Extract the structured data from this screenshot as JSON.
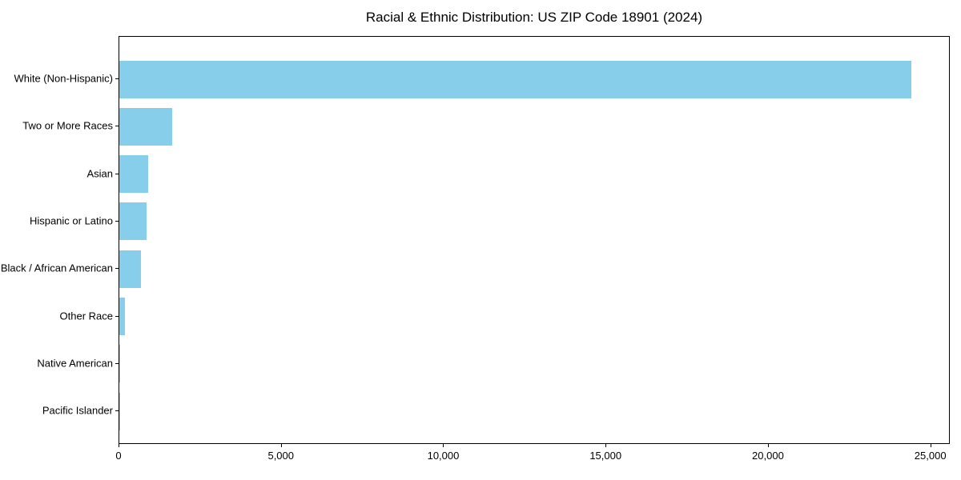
{
  "chart_data": {
    "type": "bar",
    "orientation": "horizontal",
    "title": "Racial & Ethnic Distribution: US ZIP Code 18901 (2024)",
    "categories": [
      "White (Non-Hispanic)",
      "Two or More Races",
      "Asian",
      "Hispanic or Latino",
      "Black / African American",
      "Other Race",
      "Native American",
      "Pacific Islander"
    ],
    "values": [
      24380,
      1630,
      890,
      840,
      670,
      170,
      10,
      5
    ],
    "xlabel": "",
    "ylabel": "",
    "xlim": [
      0,
      25600
    ],
    "xticks": [
      0,
      5000,
      10000,
      15000,
      20000,
      25000
    ],
    "xtick_labels": [
      "0",
      "5,000",
      "10,000",
      "15,000",
      "20,000",
      "25,000"
    ],
    "bar_color": "#87CEEB",
    "grid": false,
    "legend_position": "none"
  }
}
